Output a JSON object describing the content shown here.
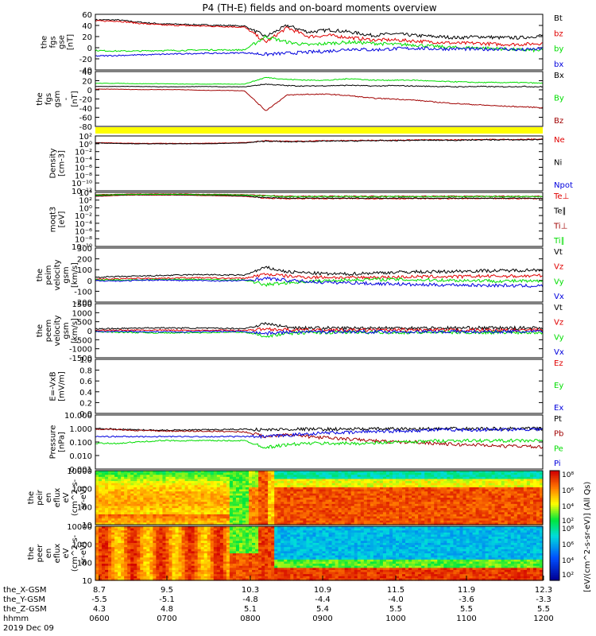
{
  "title": "P4 (TH-E) fields and on-board moments overview",
  "colors": {
    "black": "#000000",
    "red": "#e00000",
    "green": "#00dd00",
    "blue": "#0000dd",
    "darkred": "#a00000",
    "yellow": "#ffff00"
  },
  "chart_data": [
    {
      "type": "line",
      "ylabel": [
        "the",
        "fgs",
        "gse",
        "[nT]"
      ],
      "ylim": [
        -40,
        60
      ],
      "yticks": [
        "60",
        "40",
        "20",
        "0",
        "-20",
        "-40"
      ],
      "series": [
        {
          "name": "Bt",
          "color": "black",
          "values": [
            50,
            50,
            46,
            43,
            42,
            41,
            40,
            39,
            20,
            40,
            28,
            32,
            28,
            22,
            25,
            22,
            20,
            18,
            20,
            18,
            18,
            22
          ]
        },
        {
          "name": "bz",
          "color": "red",
          "values": [
            48,
            48,
            44,
            41,
            40,
            39,
            38,
            37,
            10,
            36,
            20,
            22,
            18,
            14,
            14,
            12,
            10,
            8,
            8,
            6,
            6,
            8
          ]
        },
        {
          "name": "by",
          "color": "green",
          "values": [
            -5,
            -6,
            -6,
            -5,
            -5,
            -4,
            -4,
            -4,
            20,
            10,
            5,
            8,
            10,
            8,
            6,
            5,
            2,
            0,
            0,
            -2,
            -4,
            -5
          ]
        },
        {
          "name": "bx",
          "color": "blue",
          "values": [
            -15,
            -14,
            -13,
            -12,
            -11,
            -10,
            -10,
            -9,
            -12,
            -10,
            -8,
            -6,
            -2,
            -4,
            -2,
            -1,
            -2,
            -2,
            -3,
            -2,
            -4,
            -2
          ]
        }
      ]
    },
    {
      "type": "line",
      "ylabel": [
        "the",
        "fgs",
        "gsm",
        "-",
        "[nT]"
      ],
      "ylim": [
        -100,
        40
      ],
      "yticks": [
        "40",
        "20",
        "0",
        "-20",
        "-40",
        "-60",
        "-80"
      ],
      "series": [
        {
          "name": "Bx",
          "color": "black",
          "values": [
            2,
            2,
            2,
            1,
            1,
            2,
            1,
            1,
            8,
            4,
            3,
            4,
            5,
            3,
            4,
            3,
            2,
            1,
            2,
            1,
            2,
            1
          ]
        },
        {
          "name": "By",
          "color": "green",
          "values": [
            10,
            10,
            9,
            9,
            8,
            8,
            8,
            8,
            25,
            20,
            18,
            18,
            22,
            18,
            18,
            18,
            15,
            14,
            12,
            12,
            12,
            10
          ]
        },
        {
          "name": "Bz",
          "color": "darkred",
          "values": [
            -5,
            -5,
            -6,
            -6,
            -6,
            -8,
            -8,
            -9,
            -60,
            -20,
            -18,
            -18,
            -22,
            -28,
            -30,
            -33,
            -38,
            -42,
            -45,
            -48,
            -50,
            -52
          ]
        }
      ]
    },
    {
      "type": "line",
      "ylabel": [
        "Density",
        "[cm-3]"
      ],
      "log": true,
      "ylim": [
        -12,
        2
      ],
      "yticks": [
        "10²",
        "10⁰",
        "10⁻²",
        "10⁻⁴",
        "10⁻⁶",
        "10⁻⁸",
        "10⁻¹⁰",
        "10⁻¹²"
      ],
      "series": [
        {
          "name": "Ne",
          "color": "red",
          "values": [
            0.3,
            0.2,
            0.1,
            0.1,
            0.1,
            0.1,
            0.2,
            0.3,
            0.8,
            0.6,
            0.7,
            0.8,
            0.8,
            0.9,
            0.9,
            1.0,
            1.0,
            1.0,
            1.1,
            1.1,
            1.1,
            1.2
          ]
        },
        {
          "name": "Ni",
          "color": "black",
          "values": [
            0.2,
            0.1,
            0.0,
            0.0,
            0.0,
            0.0,
            0.1,
            0.2,
            0.7,
            0.5,
            0.6,
            0.7,
            0.7,
            0.8,
            0.8,
            0.9,
            0.9,
            0.9,
            1.0,
            1.0,
            1.0,
            1.1
          ]
        },
        {
          "name": "Npot",
          "color": "blue",
          "values": []
        }
      ]
    },
    {
      "type": "line",
      "ylabel": [
        "moqt3",
        "[eV]"
      ],
      "log": true,
      "ylim": [
        -10,
        4
      ],
      "yticks": [
        "10⁴",
        "10²",
        "10⁰",
        "10⁻²",
        "10⁻⁴",
        "10⁻⁶",
        "10⁻⁸",
        "10⁻¹⁰"
      ],
      "series": [
        {
          "name": "Te⊥",
          "color": "red",
          "values": [
            3.0,
            3.2,
            3.3,
            3.3,
            3.3,
            3.2,
            3.1,
            3.0,
            2.5,
            2.4,
            2.4,
            2.4,
            2.4,
            2.4,
            2.4,
            2.4,
            2.4,
            2.4,
            2.4,
            2.4,
            2.4,
            2.4
          ]
        },
        {
          "name": "Te∥",
          "color": "black",
          "values": [
            3.1,
            3.3,
            3.4,
            3.4,
            3.4,
            3.3,
            3.2,
            3.1,
            2.6,
            2.5,
            2.5,
            2.5,
            2.5,
            2.5,
            2.5,
            2.5,
            2.5,
            2.5,
            2.5,
            2.5,
            2.5,
            2.5
          ]
        },
        {
          "name": "Ti⊥",
          "color": "darkred",
          "values": [
            3.4,
            3.5,
            3.6,
            3.6,
            3.6,
            3.5,
            3.5,
            3.4,
            3.2,
            3.0,
            3.0,
            3.0,
            3.0,
            3.0,
            3.0,
            3.0,
            3.0,
            3.0,
            3.0,
            3.0,
            3.0,
            3.0
          ]
        },
        {
          "name": "Ti∥",
          "color": "green",
          "values": [
            3.3,
            3.4,
            3.5,
            3.5,
            3.5,
            3.4,
            3.4,
            3.3,
            3.1,
            2.9,
            2.9,
            2.9,
            2.9,
            2.9,
            2.9,
            2.9,
            2.9,
            2.9,
            2.9,
            2.9,
            2.9,
            2.9
          ]
        }
      ]
    },
    {
      "type": "line",
      "ylabel": [
        "the",
        "peim",
        "velocity",
        "gsm",
        "[km/s]"
      ],
      "ylim": [
        -200,
        300
      ],
      "yticks": [
        "300",
        "200",
        "100",
        "0",
        "-100",
        "-200"
      ],
      "series": [
        {
          "name": "Vt",
          "color": "black",
          "values": [
            30,
            35,
            40,
            45,
            50,
            55,
            50,
            50,
            120,
            80,
            70,
            60,
            60,
            70,
            75,
            80,
            80,
            85,
            90,
            90,
            95,
            100
          ]
        },
        {
          "name": "Vz",
          "color": "red",
          "values": [
            10,
            15,
            20,
            20,
            25,
            25,
            20,
            20,
            60,
            40,
            30,
            30,
            25,
            30,
            30,
            35,
            35,
            35,
            40,
            40,
            40,
            45
          ]
        },
        {
          "name": "Vy",
          "color": "green",
          "values": [
            5,
            5,
            5,
            10,
            10,
            10,
            5,
            5,
            -40,
            -20,
            -10,
            0,
            5,
            10,
            10,
            5,
            5,
            0,
            0,
            -5,
            -5,
            -10
          ]
        },
        {
          "name": "Vx",
          "color": "blue",
          "values": [
            0,
            -5,
            0,
            5,
            0,
            0,
            -5,
            0,
            20,
            0,
            -10,
            -20,
            -20,
            -30,
            -30,
            -40,
            -40,
            -40,
            -45,
            -45,
            -50,
            -50
          ]
        }
      ]
    },
    {
      "type": "line",
      "ylabel": [
        "the",
        "peem",
        "velocity",
        "gsm",
        "[km/s]"
      ],
      "ylim": [
        -1500,
        1500
      ],
      "yticks": [
        "1500",
        "1000",
        "500",
        "0",
        "-500",
        "-1000",
        "-1500"
      ],
      "series": [
        {
          "name": "Vt",
          "color": "black",
          "values": [
            100,
            120,
            150,
            160,
            150,
            140,
            130,
            120,
            400,
            200,
            150,
            150,
            140,
            160,
            150,
            160,
            150,
            150,
            160,
            150,
            150,
            160
          ]
        },
        {
          "name": "Vz",
          "color": "red",
          "values": [
            20,
            20,
            30,
            30,
            30,
            20,
            20,
            20,
            100,
            50,
            40,
            40,
            30,
            40,
            30,
            40,
            30,
            30,
            40,
            30,
            30,
            40
          ]
        },
        {
          "name": "Vy",
          "color": "green",
          "values": [
            -60,
            -80,
            -100,
            -120,
            -120,
            -100,
            -90,
            -80,
            -300,
            -150,
            -100,
            -100,
            -90,
            -100,
            -90,
            -100,
            -90,
            -90,
            -100,
            -90,
            -90,
            -100
          ]
        },
        {
          "name": "Vx",
          "color": "blue",
          "values": [
            -30,
            -40,
            -50,
            -60,
            -60,
            -50,
            -40,
            -40,
            -150,
            -80,
            -60,
            -60,
            -50,
            -60,
            -50,
            -60,
            -50,
            -50,
            -60,
            -50,
            -50,
            -60
          ]
        }
      ]
    },
    {
      "type": "line",
      "ylabel": [
        "E=-VxB",
        "[mV/m]"
      ],
      "ylim": [
        0,
        1
      ],
      "yticks": [
        "1.0",
        "0.8",
        "0.6",
        "0.4",
        "0.2",
        "0.0"
      ],
      "series": [
        {
          "name": "Ez",
          "color": "red",
          "values": []
        },
        {
          "name": "Ey",
          "color": "green",
          "values": []
        },
        {
          "name": "Ex",
          "color": "blue",
          "values": []
        }
      ]
    },
    {
      "type": "line",
      "ylabel": [
        "Pressure",
        "[nPa]"
      ],
      "log": true,
      "ylim": [
        -3,
        1
      ],
      "yticks": [
        "10.000",
        "1.000",
        "0.100",
        "0.010",
        "0.001"
      ],
      "series": [
        {
          "name": "Pt",
          "color": "black",
          "values": [
            0.0,
            -0.05,
            -0.1,
            -0.12,
            -0.12,
            -0.1,
            -0.08,
            -0.05,
            -0.1,
            -0.05,
            -0.05,
            -0.05,
            -0.04,
            -0.04,
            -0.03,
            -0.03,
            -0.03,
            -0.02,
            -0.02,
            -0.02,
            -0.01,
            -0.01
          ]
        },
        {
          "name": "Pb",
          "color": "darkred",
          "values": [
            -0.05,
            -0.08,
            -0.15,
            -0.18,
            -0.2,
            -0.2,
            -0.22,
            -0.25,
            -0.6,
            -0.4,
            -0.6,
            -0.7,
            -0.8,
            -0.9,
            -1.0,
            -1.0,
            -1.1,
            -1.2,
            -1.2,
            -1.3,
            -1.3,
            -1.4
          ]
        },
        {
          "name": "Pe",
          "color": "green",
          "values": [
            -1.1,
            -1.1,
            -1.0,
            -0.9,
            -0.9,
            -0.9,
            -0.9,
            -0.9,
            -1.4,
            -1.2,
            -1.1,
            -1.1,
            -1.1,
            -1.1,
            -1.0,
            -1.0,
            -0.9,
            -0.9,
            -0.9,
            -0.9,
            -0.9,
            -0.9
          ]
        },
        {
          "name": "Pi",
          "color": "blue",
          "values": [
            -0.6,
            -0.6,
            -0.6,
            -0.6,
            -0.6,
            -0.6,
            -0.6,
            -0.6,
            -0.6,
            -0.5,
            -0.4,
            -0.3,
            -0.3,
            -0.2,
            -0.2,
            -0.15,
            -0.1,
            -0.1,
            -0.1,
            -0.08,
            -0.05,
            -0.05
          ]
        }
      ]
    },
    {
      "type": "heatmap",
      "ylabel": [
        "the",
        "peir",
        "en",
        "eflux",
        "eV",
        "(cm^2-s-",
        "sr-eV)"
      ],
      "yticks": [
        "10000",
        "1000",
        "100",
        "10"
      ]
    },
    {
      "type": "heatmap",
      "ylabel": [
        "the",
        "peer",
        "en",
        "eflux",
        "eV",
        "(cm^2-s-",
        "sr-eV)"
      ],
      "yticks": [
        "10000",
        "1000",
        "100",
        "10"
      ]
    }
  ],
  "colorbar": {
    "ticks": [
      "10⁸",
      "10⁶",
      "10⁴",
      "10²"
    ],
    "label": "[eV/(cm^2-s-sr-eV)] (All Qs)",
    "ticks2": [
      "10⁸",
      "10⁶",
      "10⁴",
      "10²"
    ]
  },
  "xaxis": {
    "rows": [
      {
        "label": "the_X-GSM",
        "values": [
          "8.7",
          "9.5",
          "10.3",
          "10.9",
          "11.5",
          "11.9",
          "12.3"
        ]
      },
      {
        "label": "the_Y-GSM",
        "values": [
          "-5.5",
          "-5.1",
          "-4.8",
          "-4.4",
          "-4.0",
          "-3.6",
          "-3.3"
        ]
      },
      {
        "label": "the_Z-GSM",
        "values": [
          "4.3",
          "4.8",
          "5.1",
          "5.4",
          "5.5",
          "5.5",
          "5.5"
        ]
      },
      {
        "label": "hhmm",
        "values": [
          "0600",
          "0700",
          "0800",
          "0900",
          "1000",
          "1100",
          "1200"
        ]
      }
    ],
    "date": "2019 Dec 09"
  }
}
